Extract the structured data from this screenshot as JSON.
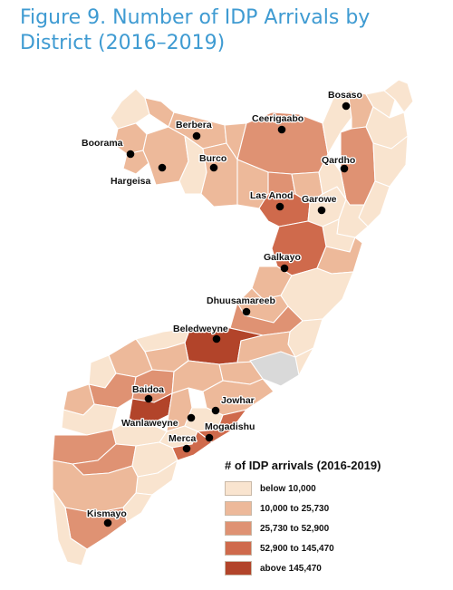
{
  "title": "Figure 9. Number of IDP Arrivals by District (2016–2019)",
  "colors": {
    "c1": "#f9e4cf",
    "c2": "#edb99a",
    "c3": "#df9273",
    "c4": "#cf6a4c",
    "c5": "#b2442a",
    "nodata": "#d9d9d9"
  },
  "legend": {
    "title": "# of IDP arrivals (2016-2019)",
    "items": [
      {
        "label": "below 10,000",
        "class": "c1"
      },
      {
        "label": "10,000 to 25,730",
        "class": "c2"
      },
      {
        "label": "25,730 to 52,900",
        "class": "c3"
      },
      {
        "label": "52,900 to 145,470",
        "class": "c4"
      },
      {
        "label": "above 145,470",
        "class": "c5"
      }
    ]
  },
  "cities": [
    {
      "name": "Bosaso",
      "class": "c2"
    },
    {
      "name": "Berbera",
      "class": "c2"
    },
    {
      "name": "Ceerigaabo",
      "class": "c3"
    },
    {
      "name": "Boorama",
      "class": "c2"
    },
    {
      "name": "Hargeisa",
      "class": "c2"
    },
    {
      "name": "Burco",
      "class": "c2"
    },
    {
      "name": "Qardho",
      "class": "c3"
    },
    {
      "name": "Las Anod",
      "class": "c4"
    },
    {
      "name": "Garowe",
      "class": "c1"
    },
    {
      "name": "Galkayo",
      "class": "c4"
    },
    {
      "name": "Dhuusamareeb",
      "class": "c3"
    },
    {
      "name": "Beledweyne",
      "class": "c5"
    },
    {
      "name": "Baidoa",
      "class": "c5"
    },
    {
      "name": "Jowhar",
      "class": "c2"
    },
    {
      "name": "Wanlaweyne",
      "class": "c1"
    },
    {
      "name": "Mogadishu",
      "class": "c4"
    },
    {
      "name": "Merca",
      "class": "c4"
    },
    {
      "name": "Kismayo",
      "class": "c3"
    }
  ]
}
